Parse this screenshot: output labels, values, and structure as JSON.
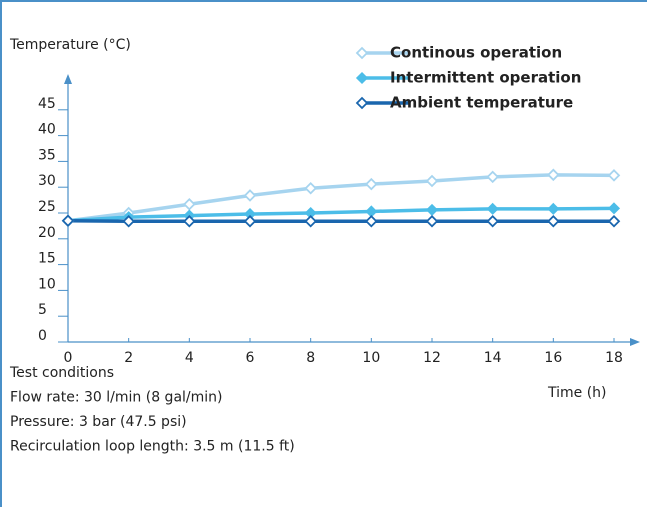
{
  "chart_data": {
    "type": "line",
    "y_label": "Temperature (°C)",
    "x_label": "Time (h)",
    "x": [
      0,
      2,
      4,
      6,
      8,
      10,
      12,
      14,
      16,
      18
    ],
    "xlim": [
      0,
      18
    ],
    "xticks": [
      0,
      2,
      4,
      6,
      8,
      10,
      12,
      14,
      16,
      18
    ],
    "ylim": [
      0,
      50
    ],
    "yticks": [
      0,
      5,
      10,
      15,
      20,
      25,
      30,
      35,
      40,
      45
    ],
    "legend": "top-right",
    "series": [
      {
        "name": "Continous operation",
        "color": "#a6d4ef",
        "marker": "open",
        "values": [
          23.5,
          25,
          26.7,
          28.4,
          29.8,
          30.6,
          31.2,
          32,
          32.4,
          32.3
        ]
      },
      {
        "name": "Intermittent operation",
        "color": "#4cbde8",
        "marker": "filled",
        "values": [
          23.5,
          24.2,
          24.5,
          24.8,
          25,
          25.3,
          25.6,
          25.8,
          25.8,
          25.9
        ]
      },
      {
        "name": "Ambient temperature",
        "color": "#1a66ae",
        "marker": "open",
        "values": [
          23.5,
          23.4,
          23.4,
          23.4,
          23.4,
          23.4,
          23.4,
          23.4,
          23.4,
          23.4
        ]
      }
    ],
    "annotations": [
      "Test conditions",
      "Flow rate: 30 l/min (8 gal/min)",
      "Pressure: 3 bar (47.5 psi)",
      "Recirculation loop length: 3.5 m (11.5 ft)"
    ]
  }
}
